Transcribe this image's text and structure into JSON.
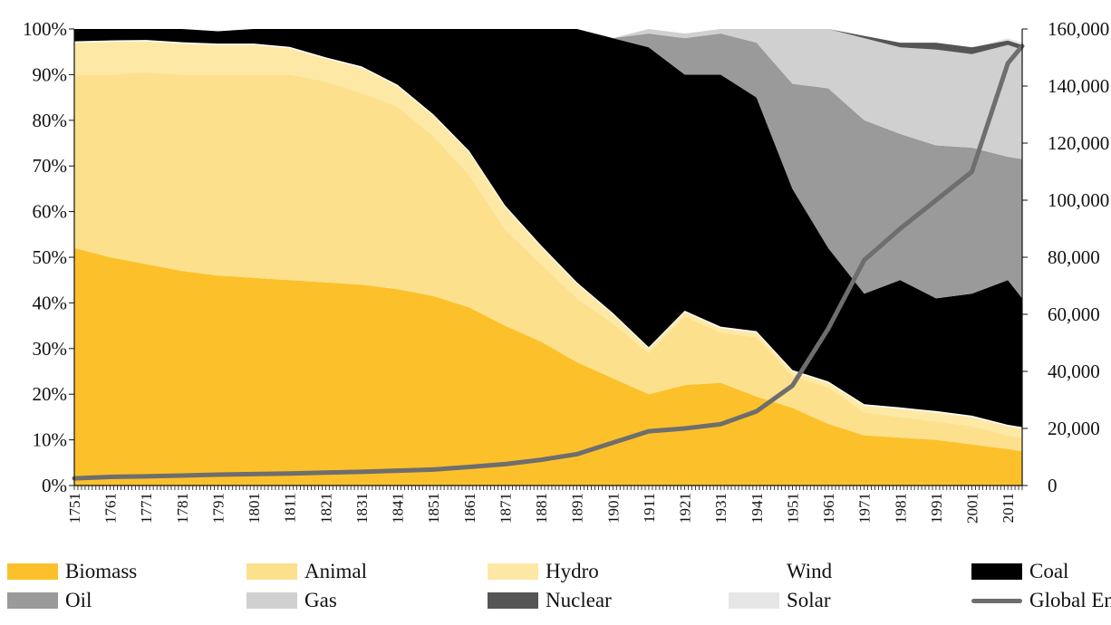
{
  "chart_data": {
    "type": "area",
    "stacked": true,
    "percent_stacked": true,
    "x": [
      1751,
      1761,
      1771,
      1781,
      1791,
      1801,
      1811,
      1821,
      1831,
      1841,
      1851,
      1861,
      1871,
      1881,
      1891,
      1901,
      1911,
      1921,
      1931,
      1941,
      1951,
      1961,
      1971,
      1981,
      1991,
      2001,
      2011,
      2015
    ],
    "x_tick_labels": [
      "1751",
      "1761",
      "1771",
      "1781",
      "1791",
      "1801",
      "1811",
      "1821",
      "1831",
      "1841",
      "1851",
      "1861",
      "1871",
      "1881",
      "1891",
      "1901",
      "1911",
      "1921",
      "1931",
      "1941",
      "1951",
      "1961",
      "1971",
      "1981",
      "1991",
      "2001",
      "2011"
    ],
    "y_tick_labels": [
      "0%",
      "10%",
      "20%",
      "30%",
      "40%",
      "50%",
      "60%",
      "70%",
      "80%",
      "90%",
      "100%"
    ],
    "y2_tick_labels": [
      "0",
      "20,000",
      "40,000",
      "60,000",
      "80,000",
      "100,000",
      "120,000",
      "140,000",
      "160,000"
    ],
    "ylim": [
      0,
      100
    ],
    "y2lim": [
      0,
      160000
    ],
    "grid": false,
    "legend_position": "bottom",
    "series": [
      {
        "name": "Biomass",
        "color": "#fcc12a",
        "values": [
          52,
          50,
          48.5,
          47,
          46,
          45.5,
          45,
          44.5,
          44,
          43,
          41.5,
          39,
          35,
          31.5,
          27,
          23.5,
          20,
          22,
          22.5,
          19.5,
          17,
          13.5,
          11,
          10.5,
          10,
          9,
          8,
          7.5
        ]
      },
      {
        "name": "Animal",
        "color": "#fde08c",
        "values": [
          38,
          40,
          42,
          43,
          44,
          44.5,
          45,
          44,
          42,
          40,
          35,
          29,
          21,
          17,
          14,
          12,
          9,
          15,
          11,
          13,
          7,
          8,
          5,
          4.5,
          4,
          4,
          3,
          3
        ]
      },
      {
        "name": "Hydro",
        "color": "#fde8a6",
        "values": [
          7,
          7.2,
          6.8,
          6.8,
          6.5,
          6.5,
          5.8,
          5,
          5.5,
          4.5,
          4.5,
          5,
          5,
          3.8,
          3.2,
          2,
          1,
          1,
          1,
          1,
          1,
          1,
          1.5,
          1.8,
          2,
          2,
          2,
          2
        ]
      },
      {
        "name": "Wind",
        "color": "#ffffff",
        "values": [
          0.3,
          0.3,
          0.3,
          0.3,
          0.3,
          0.3,
          0.3,
          0.3,
          0.3,
          0.3,
          0.3,
          0.3,
          0.3,
          0.3,
          0.3,
          0.3,
          0.3,
          0.3,
          0.3,
          0.3,
          0.3,
          0.3,
          0.3,
          0.3,
          0.3,
          0.3,
          0.3,
          0.3
        ]
      },
      {
        "name": "Coal",
        "color": "#000000",
        "values": [
          2.7,
          2.5,
          2.4,
          2.9,
          2.7,
          3.2,
          3.9,
          6.2,
          8.2,
          12.2,
          18.7,
          26.7,
          38.7,
          47.4,
          55.5,
          60.2,
          65.7,
          51.7,
          55.2,
          51.2,
          39.7,
          29.2,
          24.2,
          27.9,
          24.7,
          26.7,
          31.7,
          28.2
        ]
      },
      {
        "name": "Oil",
        "color": "#9a9a9a",
        "values": [
          0,
          0,
          0,
          0,
          0,
          0,
          0,
          0,
          0,
          0,
          0,
          0,
          0,
          0,
          0,
          0,
          3,
          8,
          9,
          12,
          23,
          35,
          38,
          32,
          33.5,
          32,
          27,
          30.5
        ]
      },
      {
        "name": "Gas",
        "color": "#d0d0d0",
        "values": [
          0,
          0,
          0,
          0,
          0,
          0,
          0,
          0,
          0,
          0,
          0,
          0,
          0,
          0,
          0,
          0,
          1,
          1,
          1,
          3,
          12,
          14,
          18,
          19,
          21,
          20.5,
          24.5,
          24
        ]
      },
      {
        "name": "Nuclear",
        "color": "#555555",
        "values": [
          0,
          0,
          0,
          0,
          0,
          0,
          0,
          0,
          0,
          0,
          0,
          0,
          0,
          0,
          0,
          0,
          0,
          0,
          0,
          0,
          0,
          0,
          0.5,
          1,
          1.5,
          1.5,
          1,
          1
        ]
      },
      {
        "name": "Solar",
        "color": "#e6e6e6",
        "values": [
          0,
          0,
          0,
          0,
          0,
          0,
          0,
          0,
          0,
          0,
          0,
          0,
          0,
          0,
          0,
          0,
          0,
          0,
          0,
          0,
          0,
          0,
          0,
          0,
          0,
          0,
          0.5,
          0.5
        ]
      }
    ],
    "line_series": {
      "name": "Global En",
      "color": "#6e6e6e",
      "axis": "right",
      "values": [
        2500,
        3000,
        3200,
        3500,
        3800,
        4000,
        4200,
        4500,
        4800,
        5200,
        5600,
        6500,
        7500,
        9000,
        11000,
        15000,
        19000,
        20000,
        21500,
        26000,
        35000,
        55000,
        79000,
        90000,
        100000,
        110000,
        148000,
        154000
      ]
    }
  },
  "legend": {
    "items": [
      {
        "label": "Biomass",
        "color": "#fcc12a",
        "kind": "box"
      },
      {
        "label": "Animal",
        "color": "#fde08c",
        "kind": "box"
      },
      {
        "label": "Hydro",
        "color": "#fde8a6",
        "kind": "box"
      },
      {
        "label": "Wind",
        "color": "#ffffff",
        "kind": "box"
      },
      {
        "label": "Coal",
        "color": "#000000",
        "kind": "box"
      },
      {
        "label": "Oil",
        "color": "#9a9a9a",
        "kind": "box"
      },
      {
        "label": "Gas",
        "color": "#d0d0d0",
        "kind": "box"
      },
      {
        "label": "Nuclear",
        "color": "#555555",
        "kind": "box"
      },
      {
        "label": "Solar",
        "color": "#e6e6e6",
        "kind": "box"
      },
      {
        "label": "Global En",
        "color": "#6e6e6e",
        "kind": "line"
      }
    ]
  }
}
